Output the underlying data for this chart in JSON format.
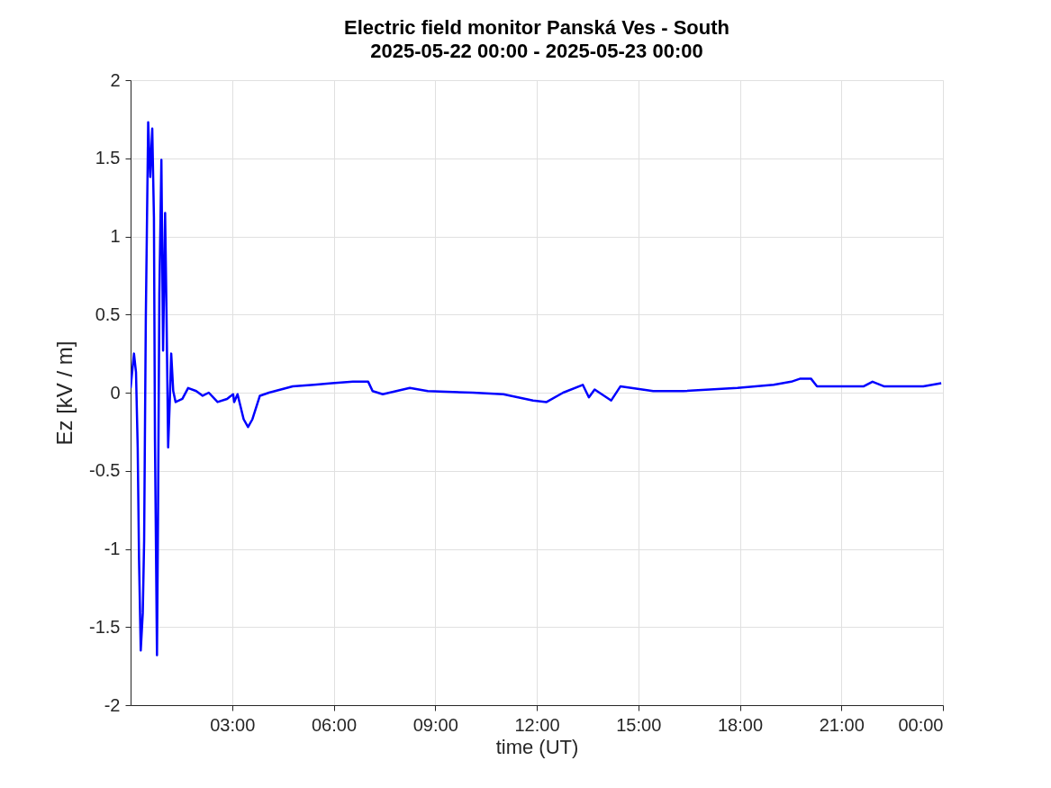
{
  "chart_data": {
    "type": "line",
    "title": "Electric field monitor Panská Ves - South",
    "subtitle": "2025-05-22 00:00 - 2025-05-23 00:00",
    "xlabel": "time (UT)",
    "ylabel": "Ez [kV / m]",
    "x": [
      0,
      0.1,
      0.16,
      0.21,
      0.25,
      0.3,
      0.36,
      0.4,
      0.45,
      0.52,
      0.58,
      0.64,
      0.69,
      0.72,
      0.78,
      0.81,
      0.85,
      0.91,
      0.96,
      1.02,
      1.06,
      1.11,
      1.16,
      1.2,
      1.26,
      1.33,
      1.53,
      1.7,
      1.94,
      2.13,
      2.31,
      2.57,
      2.85,
      3.03,
      3.06,
      3.16,
      3.34,
      3.47,
      3.6,
      3.82,
      4.09,
      4.79,
      5.42,
      5.95,
      6.57,
      7.02,
      7.15,
      7.45,
      8.25,
      8.78,
      10.11,
      11.01,
      11.89,
      12.29,
      12.78,
      13.36,
      13.54,
      13.71,
      14.2,
      14.47,
      15.44,
      16.33,
      17.93,
      19.0,
      19.52,
      19.79,
      20.1,
      20.28,
      21.65,
      21.92,
      22.27,
      23.42,
      23.95
    ],
    "series": [
      {
        "color": "#0000ff",
        "values": [
          0.03,
          0.25,
          0.13,
          -0.35,
          -1.07,
          -1.65,
          -1.41,
          -0.95,
          0.48,
          1.73,
          1.38,
          1.69,
          1.12,
          -0.3,
          -1.68,
          -0.81,
          0.63,
          1.49,
          0.27,
          1.15,
          0.53,
          -0.35,
          -0.04,
          0.25,
          0.01,
          -0.06,
          -0.04,
          0.03,
          0.01,
          -0.02,
          0.0,
          -0.06,
          -0.04,
          -0.01,
          -0.06,
          -0.01,
          -0.17,
          -0.22,
          -0.17,
          -0.02,
          0.0,
          0.04,
          0.05,
          0.06,
          0.07,
          0.07,
          0.01,
          -0.01,
          0.03,
          0.01,
          0.0,
          -0.01,
          -0.05,
          -0.06,
          0.0,
          0.05,
          -0.03,
          0.02,
          -0.05,
          0.04,
          0.01,
          0.01,
          0.03,
          0.05,
          0.07,
          0.09,
          0.09,
          0.04,
          0.04,
          0.07,
          0.04,
          0.04,
          0.06
        ]
      }
    ],
    "xlim": [
      0,
      24
    ],
    "xticks": [
      {
        "value": 3,
        "label": "03:00"
      },
      {
        "value": 6,
        "label": "06:00"
      },
      {
        "value": 9,
        "label": "09:00"
      },
      {
        "value": 12,
        "label": "12:00"
      },
      {
        "value": 15,
        "label": "15:00"
      },
      {
        "value": 18,
        "label": "18:00"
      },
      {
        "value": 21,
        "label": "21:00"
      },
      {
        "value": 24,
        "label": "00:00"
      }
    ],
    "ylim": [
      -2,
      2
    ],
    "yticks": [
      -2,
      -1.5,
      -1,
      -0.5,
      0,
      0.5,
      1,
      1.5,
      2
    ],
    "grid": true,
    "line_style": "solid",
    "marker": "none"
  }
}
